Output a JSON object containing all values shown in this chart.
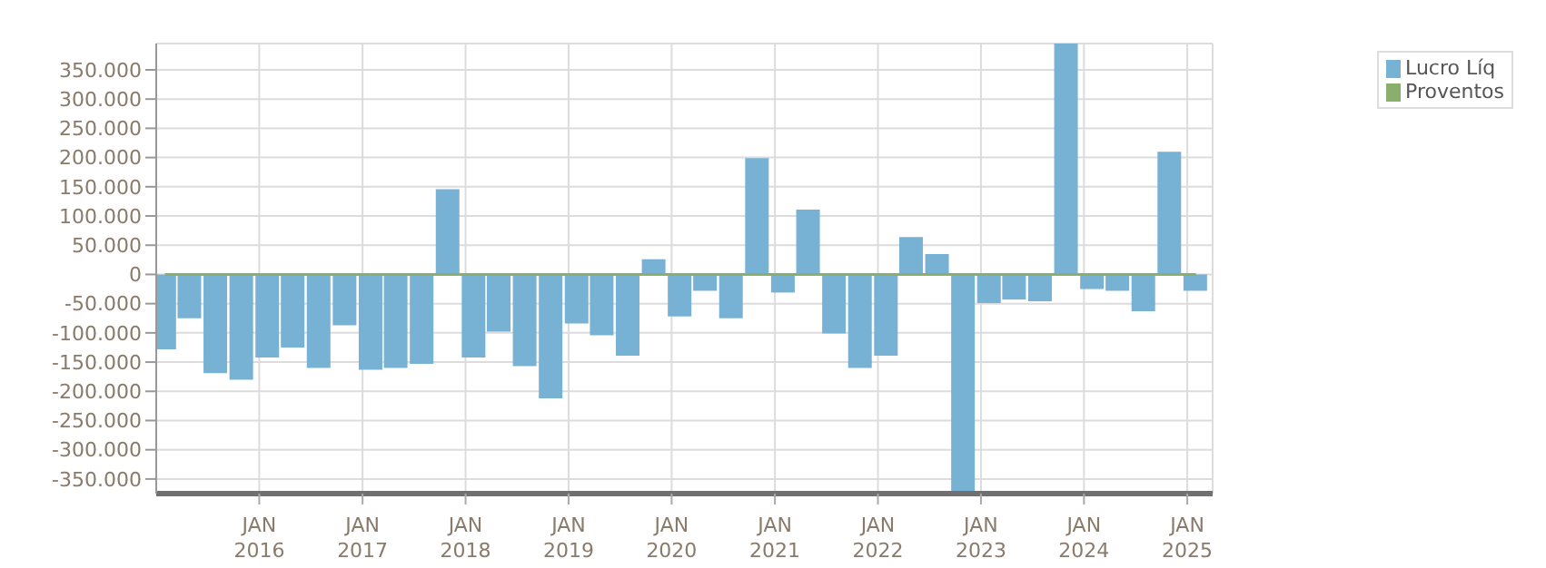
{
  "chart_data": {
    "type": "bar",
    "x": [
      "2015-02",
      "2015-05",
      "2015-08",
      "2015-11",
      "2016-02",
      "2016-05",
      "2016-08",
      "2016-11",
      "2017-02",
      "2017-05",
      "2017-08",
      "2017-11",
      "2018-02",
      "2018-05",
      "2018-08",
      "2018-11",
      "2019-02",
      "2019-05",
      "2019-08",
      "2019-11",
      "2020-02",
      "2020-05",
      "2020-08",
      "2020-11",
      "2021-02",
      "2021-05",
      "2021-08",
      "2021-11",
      "2022-02",
      "2022-05",
      "2022-08",
      "2022-11",
      "2023-02",
      "2023-05",
      "2023-08",
      "2023-11",
      "2024-02",
      "2024-05",
      "2024-08",
      "2024-11",
      "2025-02"
    ],
    "series": [
      {
        "name": "Lucro Líq",
        "color": "#77b2d4",
        "values": [
          -128000,
          -75000,
          -169000,
          -180000,
          -142000,
          -125000,
          -160000,
          -87000,
          -163000,
          -160000,
          -153000,
          146000,
          -142000,
          -98000,
          -157000,
          -212000,
          -84000,
          -104000,
          -139000,
          26000,
          -72000,
          -28000,
          -75000,
          199000,
          -31000,
          111000,
          -101000,
          -160000,
          -139000,
          64000,
          35000,
          -375000,
          -49000,
          -43000,
          -46000,
          395000,
          -25000,
          -28000,
          -63000,
          210000,
          -28000
        ]
      },
      {
        "name": "Proventos",
        "type": "line",
        "color": "#8aae6b",
        "values": [
          0,
          0,
          0,
          0,
          0,
          0,
          0,
          0,
          0,
          0,
          0,
          0,
          0,
          0,
          0,
          0,
          0,
          0,
          0,
          0,
          0,
          0,
          0,
          0,
          0,
          0,
          0,
          0,
          0,
          0,
          0,
          0,
          0,
          0,
          0,
          0,
          0,
          0,
          0,
          0,
          0
        ]
      }
    ],
    "xlim": [
      "2015-01",
      "2025-04"
    ],
    "xticks": [
      {
        "value": "2016-01",
        "label": "JAN\n2016"
      },
      {
        "value": "2017-01",
        "label": "JAN\n2017"
      },
      {
        "value": "2018-01",
        "label": "JAN\n2018"
      },
      {
        "value": "2019-01",
        "label": "JAN\n2019"
      },
      {
        "value": "2020-01",
        "label": "JAN\n2020"
      },
      {
        "value": "2021-01",
        "label": "JAN\n2021"
      },
      {
        "value": "2022-01",
        "label": "JAN\n2022"
      },
      {
        "value": "2023-01",
        "label": "JAN\n2023"
      },
      {
        "value": "2024-01",
        "label": "JAN\n2024"
      },
      {
        "value": "2025-01",
        "label": "JAN\n2025"
      }
    ],
    "ylim": [
      -375000,
      395000
    ],
    "yticks": [
      {
        "value": -350000,
        "label": "-350.000"
      },
      {
        "value": -300000,
        "label": "-300.000"
      },
      {
        "value": -250000,
        "label": "-250.000"
      },
      {
        "value": -200000,
        "label": "-200.000"
      },
      {
        "value": -150000,
        "label": "-150.000"
      },
      {
        "value": -100000,
        "label": "-100.000"
      },
      {
        "value": -50000,
        "label": "-50.000"
      },
      0,
      {
        "value": 50000,
        "label": "50.000"
      },
      {
        "value": 100000,
        "label": "100.000"
      },
      {
        "value": 150000,
        "label": "150.000"
      },
      {
        "value": 200000,
        "label": "200.000"
      },
      {
        "value": 250000,
        "label": "250.000"
      },
      {
        "value": 300000,
        "label": "300.000"
      },
      {
        "value": 350000,
        "label": "350.000"
      }
    ],
    "grid": true,
    "legend": "top right"
  }
}
